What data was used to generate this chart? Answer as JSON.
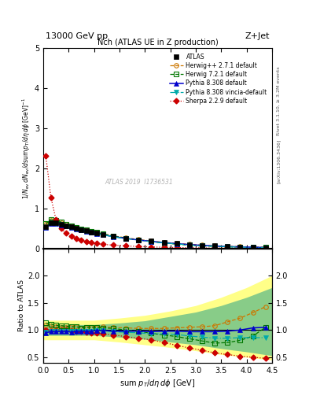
{
  "title_top": "13000 GeV pp",
  "title_right": "Z+Jet",
  "plot_title": "Nch (ATLAS UE in Z production)",
  "xlabel": "sum p_{T}/d\\eta d\\phi  [GeV]",
  "ylabel_main": "1/N_{ev} dN_{ev}/dsum p_{T}/d\\eta d\\phi  [GeV]^{-1}",
  "ylabel_ratio": "Ratio to ATLAS",
  "right_label": "Rivet 3.1.10, ≥ 3.2M events",
  "arxiv_label": "[arXiv:1306.3436]",
  "watermark": "ATLAS 2019  I1736531",
  "atlas_x": [
    0.05,
    0.15,
    0.25,
    0.35,
    0.45,
    0.55,
    0.65,
    0.75,
    0.85,
    0.95,
    1.05,
    1.175,
    1.375,
    1.625,
    1.875,
    2.125,
    2.375,
    2.625,
    2.875,
    3.125,
    3.375,
    3.625,
    3.875,
    4.125,
    4.375
  ],
  "atlas_y": [
    0.55,
    0.65,
    0.64,
    0.61,
    0.57,
    0.54,
    0.5,
    0.47,
    0.44,
    0.41,
    0.38,
    0.345,
    0.3,
    0.255,
    0.215,
    0.18,
    0.148,
    0.12,
    0.098,
    0.078,
    0.062,
    0.048,
    0.037,
    0.028,
    0.021
  ],
  "herwig271_x": [
    0.05,
    0.15,
    0.25,
    0.35,
    0.45,
    0.55,
    0.65,
    0.75,
    0.85,
    0.95,
    1.05,
    1.175,
    1.375,
    1.625,
    1.875,
    2.125,
    2.375,
    2.625,
    2.875,
    3.125,
    3.375,
    3.625,
    3.875,
    4.125,
    4.375
  ],
  "herwig271_y": [
    0.6,
    0.7,
    0.68,
    0.64,
    0.6,
    0.57,
    0.53,
    0.49,
    0.46,
    0.43,
    0.4,
    0.365,
    0.315,
    0.265,
    0.222,
    0.185,
    0.152,
    0.125,
    0.103,
    0.083,
    0.067,
    0.055,
    0.045,
    0.037,
    0.03
  ],
  "herwig721_x": [
    0.05,
    0.15,
    0.25,
    0.35,
    0.45,
    0.55,
    0.65,
    0.75,
    0.85,
    0.95,
    1.05,
    1.175,
    1.375,
    1.625,
    1.875,
    2.125,
    2.375,
    2.625,
    2.875,
    3.125,
    3.375,
    3.625,
    3.875,
    4.125,
    4.375
  ],
  "herwig721_y": [
    0.62,
    0.72,
    0.7,
    0.66,
    0.61,
    0.57,
    0.53,
    0.49,
    0.46,
    0.43,
    0.4,
    0.36,
    0.31,
    0.255,
    0.21,
    0.17,
    0.135,
    0.105,
    0.082,
    0.062,
    0.047,
    0.037,
    0.03,
    0.025,
    0.022
  ],
  "pythia308_x": [
    0.05,
    0.15,
    0.25,
    0.35,
    0.45,
    0.55,
    0.65,
    0.75,
    0.85,
    0.95,
    1.05,
    1.175,
    1.375,
    1.625,
    1.875,
    2.125,
    2.375,
    2.625,
    2.875,
    3.125,
    3.375,
    3.625,
    3.875,
    4.125,
    4.375
  ],
  "pythia308_y": [
    0.52,
    0.63,
    0.62,
    0.59,
    0.56,
    0.52,
    0.49,
    0.46,
    0.43,
    0.4,
    0.375,
    0.34,
    0.295,
    0.25,
    0.21,
    0.175,
    0.145,
    0.118,
    0.095,
    0.076,
    0.06,
    0.047,
    0.037,
    0.029,
    0.022
  ],
  "pythia308v_x": [
    0.05,
    0.15,
    0.25,
    0.35,
    0.45,
    0.55,
    0.65,
    0.75,
    0.85,
    0.95,
    1.05,
    1.175,
    1.375,
    1.625,
    1.875,
    2.125,
    2.375,
    2.625,
    2.875,
    3.125,
    3.375,
    3.625,
    3.875,
    4.125,
    4.375
  ],
  "pythia308v_y": [
    0.53,
    0.64,
    0.63,
    0.6,
    0.56,
    0.53,
    0.49,
    0.46,
    0.43,
    0.4,
    0.375,
    0.34,
    0.29,
    0.245,
    0.205,
    0.168,
    0.137,
    0.11,
    0.087,
    0.068,
    0.053,
    0.041,
    0.032,
    0.024,
    0.018
  ],
  "sherpa229_x": [
    0.05,
    0.15,
    0.25,
    0.35,
    0.45,
    0.55,
    0.65,
    0.75,
    0.85,
    0.95,
    1.05,
    1.175,
    1.375,
    1.625,
    1.875,
    2.125,
    2.375,
    2.625,
    2.875,
    3.125,
    3.375,
    3.625,
    3.875,
    4.125,
    4.375
  ],
  "sherpa229_y": [
    2.32,
    1.28,
    0.72,
    0.5,
    0.38,
    0.3,
    0.24,
    0.2,
    0.17,
    0.14,
    0.12,
    0.1,
    0.082,
    0.063,
    0.049,
    0.037,
    0.028,
    0.021,
    0.016,
    0.012,
    0.009,
    0.007,
    0.006,
    0.005,
    0.004
  ],
  "ratio_x": [
    0.05,
    0.15,
    0.25,
    0.35,
    0.45,
    0.55,
    0.65,
    0.75,
    0.85,
    0.95,
    1.05,
    1.175,
    1.375,
    1.625,
    1.875,
    2.125,
    2.375,
    2.625,
    2.875,
    3.125,
    3.375,
    3.625,
    3.875,
    4.125,
    4.375
  ],
  "ratio_herwig271": [
    1.09,
    1.08,
    1.06,
    1.05,
    1.05,
    1.06,
    1.06,
    1.04,
    1.05,
    1.05,
    1.05,
    1.06,
    1.05,
    1.04,
    1.03,
    1.03,
    1.03,
    1.04,
    1.05,
    1.06,
    1.08,
    1.15,
    1.22,
    1.32,
    1.43
  ],
  "ratio_herwig721": [
    1.13,
    1.11,
    1.09,
    1.08,
    1.07,
    1.06,
    1.06,
    1.04,
    1.05,
    1.05,
    1.05,
    1.04,
    1.03,
    1.0,
    0.98,
    0.94,
    0.91,
    0.88,
    0.84,
    0.8,
    0.76,
    0.77,
    0.81,
    0.89,
    1.05
  ],
  "ratio_pythia308": [
    0.95,
    0.97,
    0.97,
    0.97,
    0.98,
    0.96,
    0.98,
    0.98,
    0.98,
    0.98,
    0.99,
    0.99,
    0.98,
    0.98,
    0.98,
    0.97,
    0.98,
    0.98,
    0.97,
    0.97,
    0.97,
    0.98,
    1.0,
    1.04,
    1.05
  ],
  "ratio_pythia308v": [
    0.96,
    0.98,
    0.98,
    0.98,
    0.98,
    0.98,
    0.98,
    0.98,
    0.98,
    0.98,
    0.99,
    0.99,
    0.97,
    0.96,
    0.95,
    0.93,
    0.93,
    0.92,
    0.89,
    0.87,
    0.85,
    0.85,
    0.86,
    0.86,
    0.86
  ],
  "ratio_sherpa229": [
    1.0,
    0.99,
    1.0,
    1.01,
    1.0,
    0.99,
    0.98,
    0.97,
    0.96,
    0.95,
    0.94,
    0.93,
    0.91,
    0.88,
    0.85,
    0.82,
    0.77,
    0.72,
    0.67,
    0.63,
    0.58,
    0.55,
    0.52,
    0.5,
    0.48
  ],
  "band_yellow_x": [
    0.0,
    0.5,
    1.0,
    1.5,
    2.0,
    2.5,
    3.0,
    3.5,
    4.0,
    4.5
  ],
  "band_yellow_lo": [
    0.82,
    0.82,
    0.82,
    0.78,
    0.73,
    0.68,
    0.62,
    0.55,
    0.5,
    0.45
  ],
  "band_yellow_hi": [
    1.18,
    1.18,
    1.18,
    1.22,
    1.27,
    1.35,
    1.45,
    1.6,
    1.78,
    2.0
  ],
  "band_green_x": [
    0.0,
    0.5,
    1.0,
    1.5,
    2.0,
    2.5,
    3.0,
    3.5,
    4.0,
    4.5
  ],
  "band_green_lo": [
    0.9,
    0.9,
    0.9,
    0.87,
    0.83,
    0.78,
    0.73,
    0.66,
    0.6,
    0.53
  ],
  "band_green_hi": [
    1.1,
    1.1,
    1.1,
    1.13,
    1.17,
    1.25,
    1.33,
    1.45,
    1.6,
    1.78
  ],
  "colors": {
    "atlas": "#000000",
    "herwig271": "#cc7700",
    "herwig721": "#007700",
    "pythia308": "#0000cc",
    "pythia308v": "#00aaaa",
    "sherpa229": "#cc0000"
  },
  "main_ylim": [
    0.0,
    5.0
  ],
  "ratio_ylim": [
    0.4,
    2.5
  ],
  "xlim": [
    0.0,
    4.5
  ],
  "ratio_yticks": [
    0.5,
    1.0,
    1.5,
    2.0
  ],
  "main_yticks": [
    0,
    1,
    2,
    3,
    4,
    5
  ]
}
